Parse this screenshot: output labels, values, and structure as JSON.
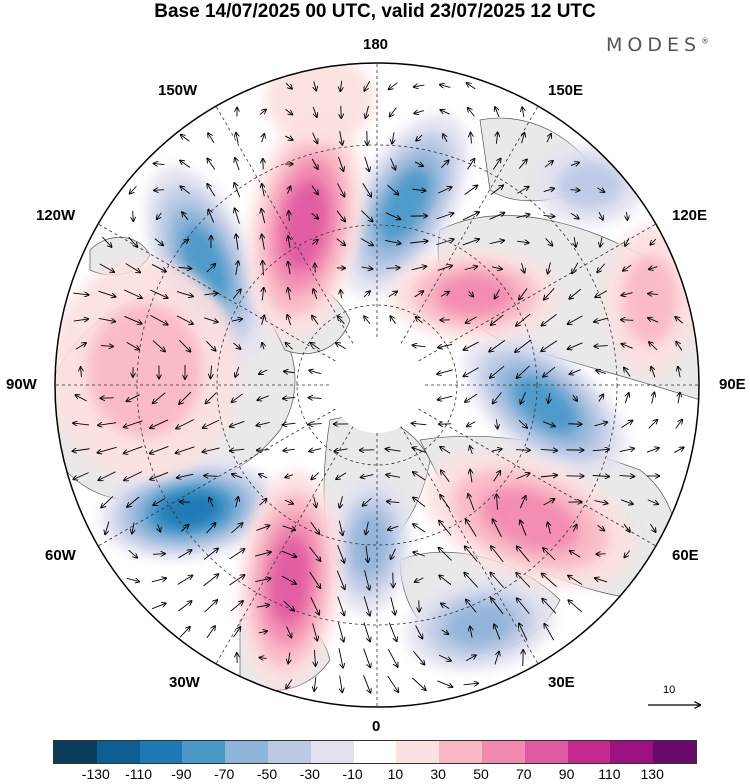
{
  "title": "Base 14/07/2025 00 UTC, valid 23/07/2025 12 UTC",
  "brand": "MODES",
  "brand_mark": "®",
  "longitude_labels": [
    {
      "id": "180",
      "text": "180"
    },
    {
      "id": "150E",
      "text": "150E"
    },
    {
      "id": "120E",
      "text": "120E"
    },
    {
      "id": "90E",
      "text": "90E"
    },
    {
      "id": "60E",
      "text": "60E"
    },
    {
      "id": "30E",
      "text": "30E"
    },
    {
      "id": "0",
      "text": "0"
    },
    {
      "id": "30W",
      "text": "30W"
    },
    {
      "id": "60W",
      "text": "60W"
    },
    {
      "id": "90W",
      "text": "90W"
    },
    {
      "id": "120W",
      "text": "120W"
    },
    {
      "id": "150W",
      "text": "150W"
    }
  ],
  "reference_vector": {
    "label": "10"
  },
  "colorbar": {
    "colors": [
      "#0b3d5e",
      "#0f5f94",
      "#1f78b4",
      "#4a98c9",
      "#8fb4d9",
      "#bcc9e5",
      "#e3e2f1",
      "#ffffff",
      "#fde0e0",
      "#f9b8c4",
      "#f28ab0",
      "#e05aa3",
      "#c42a8f",
      "#9c117f",
      "#6a0a6a"
    ],
    "labels": [
      "-130",
      "-110",
      "-90",
      "-70",
      "-50",
      "-30",
      "-10",
      "10",
      "30",
      "50",
      "70",
      "90",
      "110",
      "130"
    ]
  },
  "colors": {
    "land": "#e9e9e9",
    "coast": "#555555",
    "grid": "#333333",
    "arrow": "#000000"
  }
}
